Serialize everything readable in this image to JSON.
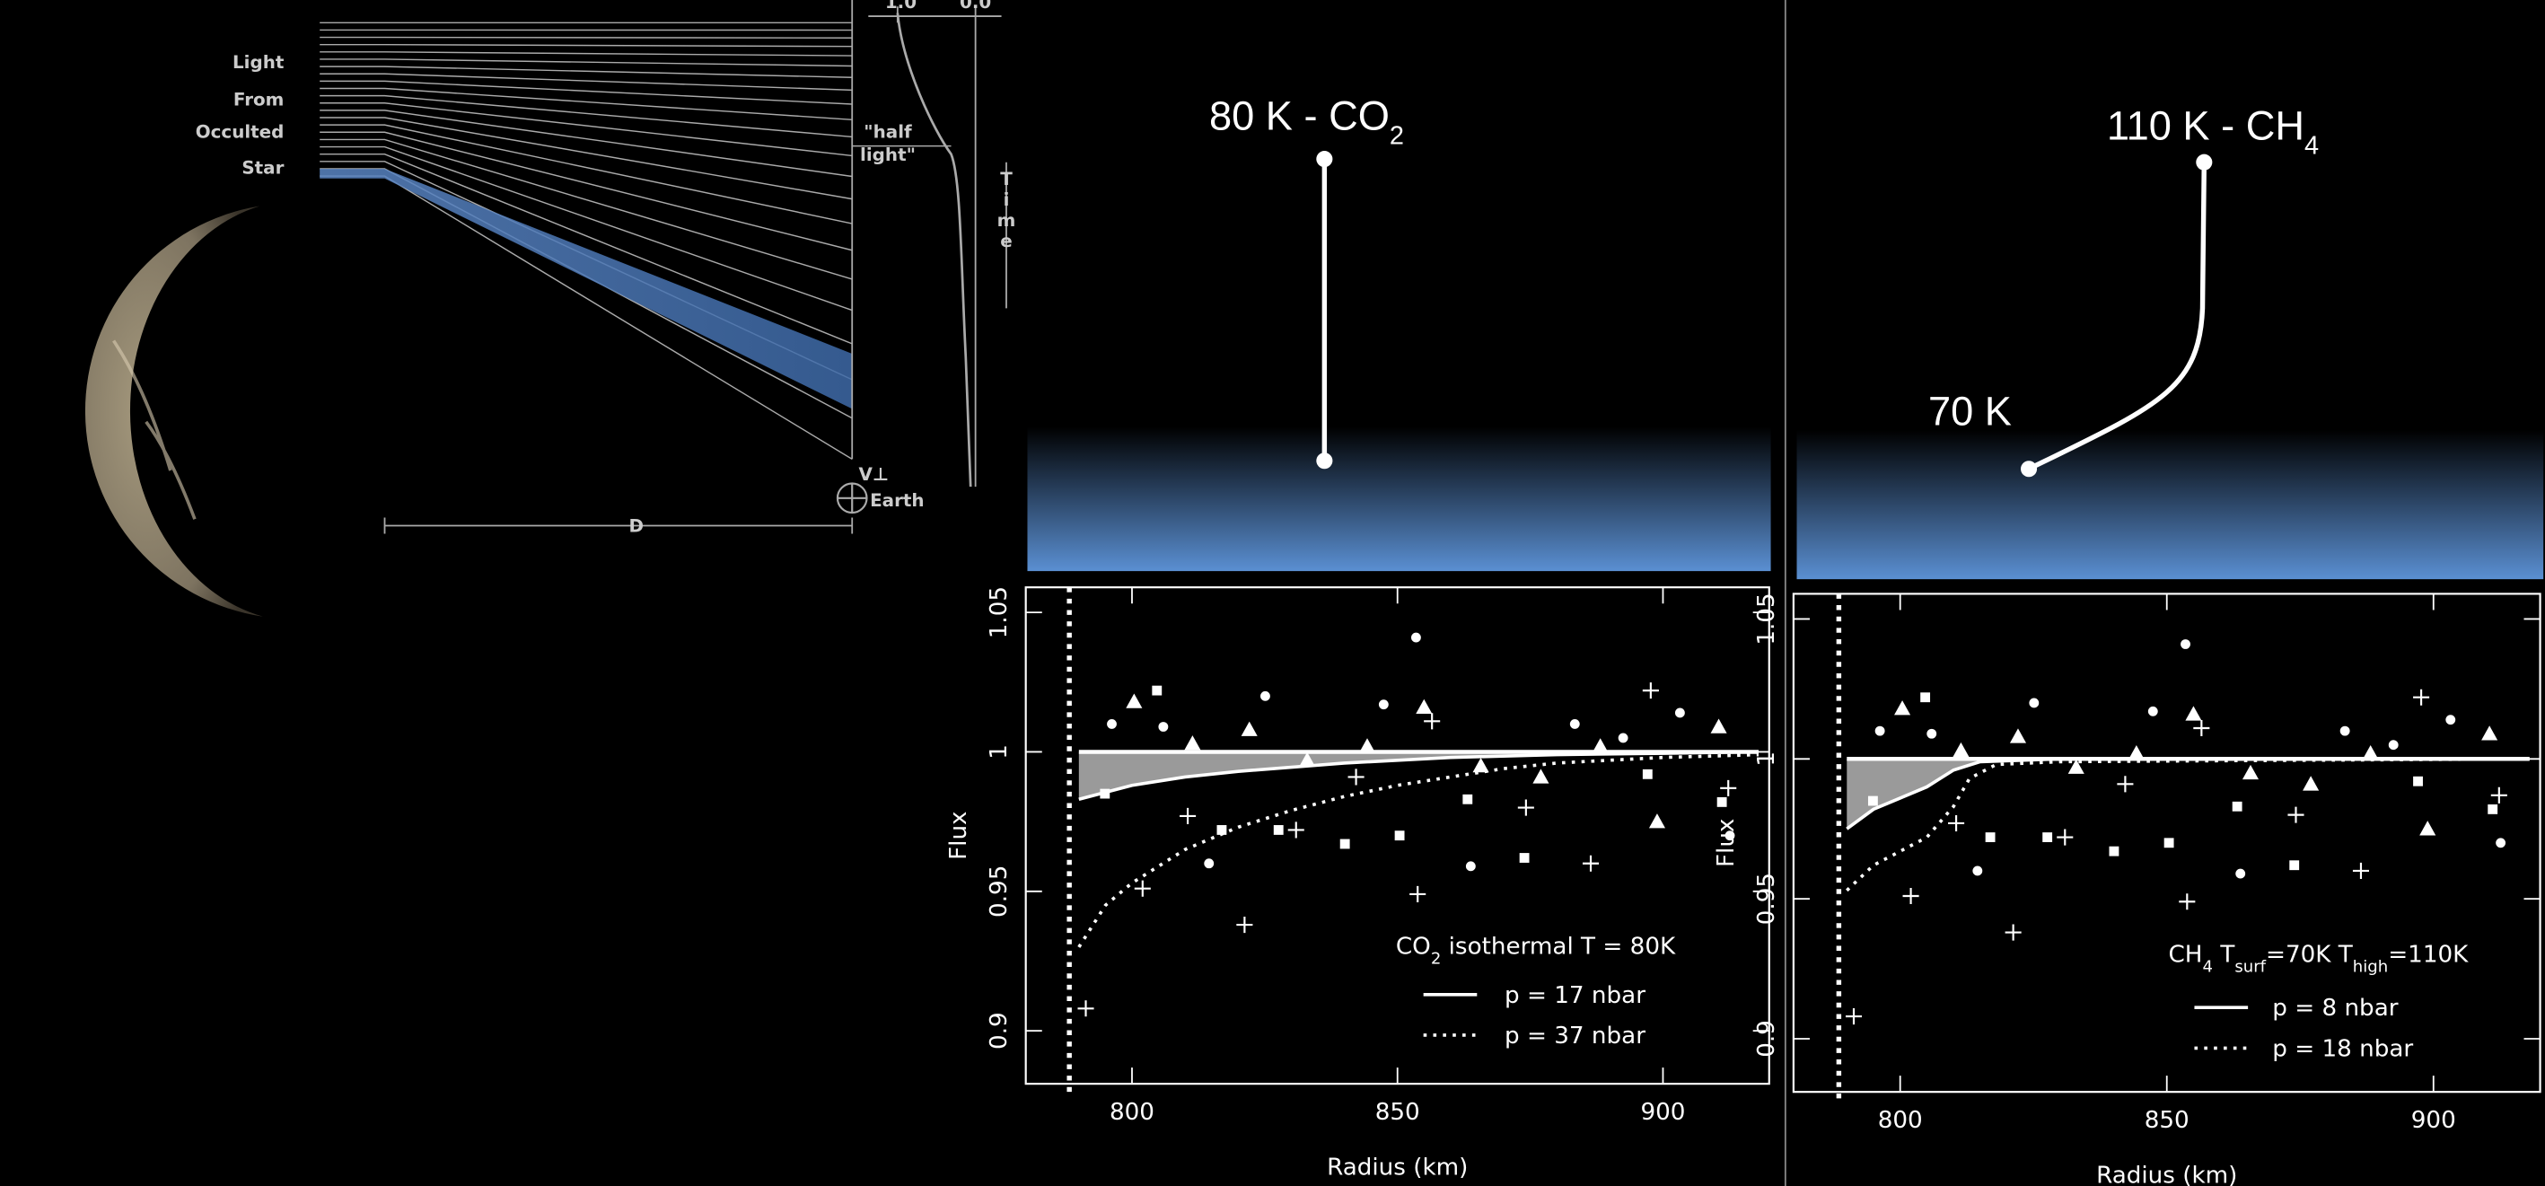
{
  "diagram": {
    "labels": [
      "Light",
      "From",
      "Occulted",
      "Star"
    ],
    "half_light": [
      "\"half",
      "light\""
    ],
    "time": "Time",
    "distance": "D",
    "earth": "Earth",
    "velocity": "V⊥",
    "curve_ticks": [
      "1.0",
      "0.0"
    ]
  },
  "atmospheres": [
    {
      "label": [
        "80 K - CO",
        "2"
      ]
    },
    {
      "label": [
        "110 K - CH",
        "4"
      ],
      "surface_label": "70 K"
    }
  ],
  "chart_data": [
    {
      "type": "line",
      "x_label": "Radius (km)",
      "y_label": "Flux",
      "xlim": [
        780,
        920
      ],
      "ylim": [
        0.881,
        1.059
      ],
      "xticks": [
        800,
        850,
        900
      ],
      "yticks": [
        0.9,
        0.95,
        1,
        1.05
      ],
      "surface_radius": 788.2,
      "legend_title": [
        "CO",
        "2",
        " isothermal T = 80K"
      ],
      "series": [
        {
          "name": "p = 17 nbar",
          "style": "solid",
          "color": "#ffffff",
          "x": [
            790,
            800,
            810,
            820,
            840,
            860,
            880,
            900,
            918
          ],
          "values": [
            0.983,
            0.988,
            0.991,
            0.993,
            0.996,
            0.998,
            0.999,
            0.9995,
            1.0
          ]
        },
        {
          "name": "p = 37 nbar",
          "style": "dotted",
          "color": "#ffffff",
          "x": [
            790,
            795,
            800,
            810,
            820,
            830,
            840,
            850,
            860,
            870,
            880,
            900,
            918
          ],
          "values": [
            0.93,
            0.945,
            0.953,
            0.965,
            0.973,
            0.979,
            0.984,
            0.988,
            0.991,
            0.994,
            0.996,
            0.998,
            0.999
          ]
        }
      ],
      "points": [
        {
          "marker": "circle",
          "color": "#ffffff",
          "x": [
            796.2,
            805.9,
            825.1,
            814.5,
            847.4,
            853.5,
            863.8,
            883.4,
            892.5,
            903.2,
            912.6
          ],
          "values": [
            1.01,
            1.009,
            1.02,
            0.96,
            1.017,
            1.041,
            0.959,
            1.01,
            1.005,
            1.014,
            0.97
          ]
        },
        {
          "marker": "triangle",
          "color": "#ffffff",
          "x": [
            800.4,
            811.4,
            822.1,
            833.0,
            844.3,
            855.0,
            865.7,
            877.0,
            888.2,
            898.9,
            910.5
          ],
          "values": [
            1.018,
            1.003,
            1.008,
            0.997,
            1.002,
            1.016,
            0.995,
            0.991,
            1.002,
            0.975,
            1.009
          ]
        },
        {
          "marker": "square",
          "color": "#ffffff",
          "x": [
            794.9,
            804.7,
            816.9,
            827.6,
            840.1,
            850.4,
            863.2,
            873.9,
            897.1,
            911.1
          ],
          "values": [
            0.985,
            1.022,
            0.972,
            0.972,
            0.967,
            0.97,
            0.983,
            0.962,
            0.992,
            0.982
          ]
        },
        {
          "marker": "plus",
          "color": "#ffffff",
          "x": [
            791.3,
            802.0,
            810.5,
            821.2,
            830.9,
            842.2,
            853.8,
            856.5,
            874.2,
            886.4,
            897.7,
            912.3
          ],
          "values": [
            0.908,
            0.951,
            0.977,
            0.938,
            0.972,
            0.991,
            0.949,
            1.011,
            0.98,
            0.96,
            1.022,
            0.987
          ]
        }
      ]
    },
    {
      "type": "line",
      "x_label": "Radius (km)",
      "y_label": "Flux",
      "xlim": [
        780,
        920
      ],
      "ylim": [
        0.881,
        1.059
      ],
      "xticks": [
        800,
        850,
        900
      ],
      "yticks": [
        0.9,
        0.95,
        1,
        1.05
      ],
      "surface_radius": 788.5,
      "legend_title": [
        "CH",
        "4",
        " T",
        "surf",
        "=70K T",
        "high",
        "=110K"
      ],
      "series": [
        {
          "name": "p = 8 nbar",
          "style": "solid",
          "color": "#ffffff",
          "x": [
            790,
            795,
            800,
            805,
            810,
            815,
            830,
            918
          ],
          "values": [
            0.975,
            0.982,
            0.986,
            0.99,
            0.996,
            0.999,
            1.0,
            1.0
          ]
        },
        {
          "name": "p = 18 nbar",
          "style": "dotted",
          "color": "#ffffff",
          "x": [
            790,
            795,
            800,
            805,
            810,
            813,
            818,
            830,
            918
          ],
          "values": [
            0.953,
            0.962,
            0.967,
            0.972,
            0.983,
            0.993,
            0.998,
            0.999,
            1.0
          ]
        }
      ],
      "points": [
        {
          "marker": "circle",
          "color": "#ffffff",
          "x": [
            796.2,
            805.9,
            825.1,
            814.5,
            847.4,
            853.5,
            863.8,
            883.4,
            892.5,
            903.2,
            912.6
          ],
          "values": [
            1.01,
            1.009,
            1.02,
            0.96,
            1.017,
            1.041,
            0.959,
            1.01,
            1.005,
            1.014,
            0.97
          ]
        },
        {
          "marker": "triangle",
          "color": "#ffffff",
          "x": [
            800.4,
            811.4,
            822.1,
            833.0,
            844.3,
            855.0,
            865.7,
            877.0,
            888.2,
            898.9,
            910.5
          ],
          "values": [
            1.018,
            1.003,
            1.008,
            0.997,
            1.002,
            1.016,
            0.995,
            0.991,
            1.002,
            0.975,
            1.009
          ]
        },
        {
          "marker": "square",
          "color": "#ffffff",
          "x": [
            794.9,
            804.7,
            816.9,
            827.6,
            840.1,
            850.4,
            863.2,
            873.9,
            897.1,
            911.1
          ],
          "values": [
            0.985,
            1.022,
            0.972,
            0.972,
            0.967,
            0.97,
            0.983,
            0.962,
            0.992,
            0.982
          ]
        },
        {
          "marker": "plus",
          "color": "#ffffff",
          "x": [
            791.3,
            802.0,
            810.5,
            821.2,
            830.9,
            842.2,
            853.8,
            856.5,
            874.2,
            886.4,
            897.7,
            912.3
          ],
          "values": [
            0.908,
            0.951,
            0.977,
            0.938,
            0.972,
            0.991,
            0.949,
            1.011,
            0.98,
            0.96,
            1.022,
            0.987
          ]
        }
      ]
    }
  ]
}
